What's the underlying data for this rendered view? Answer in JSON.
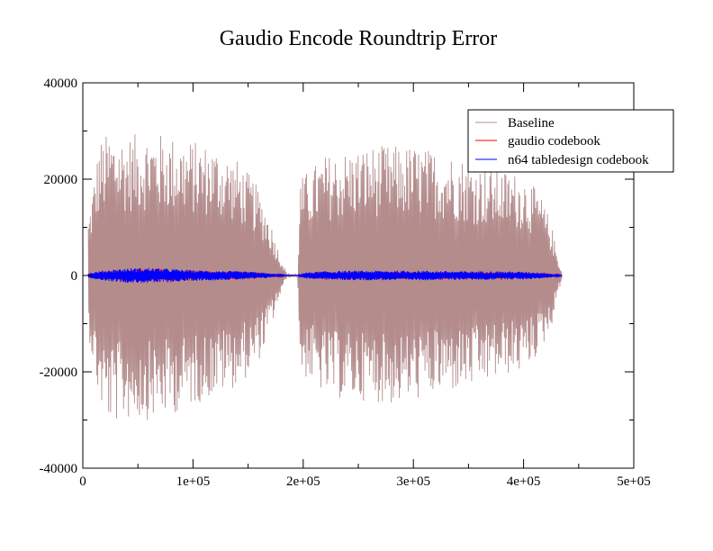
{
  "chart_data": {
    "type": "line",
    "title": "Gaudio Encode Roundtrip Error",
    "xlabel": "",
    "ylabel": "",
    "xlim": [
      0,
      500000
    ],
    "ylim": [
      -40000,
      40000
    ],
    "x_major_ticks": [
      0,
      100000,
      200000,
      300000,
      400000,
      500000
    ],
    "x_tick_labels": [
      "0",
      "1e+05",
      "2e+05",
      "3e+05",
      "4e+05",
      "5e+05"
    ],
    "y_major_ticks": [
      -40000,
      -20000,
      0,
      20000,
      40000
    ],
    "y_tick_labels": [
      "-40000",
      "-20000",
      "0",
      "20000",
      "40000"
    ],
    "grid": false,
    "legend_position": "top-right",
    "series": [
      {
        "name": "Baseline",
        "color": "#b48c8c",
        "x": [
          5000,
          15000,
          25000,
          40000,
          60000,
          80000,
          100000,
          120000,
          140000,
          155000,
          165000,
          172000,
          178000,
          185000,
          195000,
          197000,
          205000,
          220000,
          240000,
          260000,
          280000,
          300000,
          320000,
          340000,
          360000,
          380000,
          400000,
          415000,
          425000,
          430000,
          435000
        ],
        "upper": [
          12000,
          28000,
          30000,
          29000,
          30000,
          29000,
          28000,
          27000,
          24000,
          20000,
          15000,
          10000,
          5000,
          500,
          200,
          20000,
          22000,
          25000,
          26000,
          27000,
          27000,
          27000,
          26000,
          25000,
          23000,
          22000,
          21000,
          17000,
          11000,
          5000,
          500
        ],
        "lower": [
          -12000,
          -27000,
          -31000,
          -30000,
          -30000,
          -29000,
          -27000,
          -25000,
          -23000,
          -20000,
          -15000,
          -10000,
          -5000,
          -500,
          -200,
          -20000,
          -22000,
          -25000,
          -26000,
          -26000,
          -27000,
          -26000,
          -25000,
          -24000,
          -23000,
          -21000,
          -20000,
          -16000,
          -11000,
          -5000,
          -500
        ]
      },
      {
        "name": "gaudio codebook",
        "color": "#ff0000",
        "x": [
          5000,
          20000,
          40000,
          60000,
          80000,
          100000,
          120000,
          140000,
          160000,
          175000,
          185000,
          195000,
          200000,
          220000,
          250000,
          280000,
          310000,
          340000,
          370000,
          400000,
          420000,
          435000
        ],
        "upper": [
          400,
          900,
          1200,
          1300,
          1200,
          1000,
          900,
          800,
          600,
          300,
          50,
          30,
          500,
          700,
          800,
          800,
          800,
          700,
          700,
          600,
          500,
          50
        ],
        "lower": [
          -400,
          -900,
          -1200,
          -1300,
          -1200,
          -1000,
          -900,
          -800,
          -600,
          -300,
          -50,
          -30,
          -500,
          -700,
          -800,
          -800,
          -800,
          -700,
          -700,
          -600,
          -500,
          -50
        ]
      },
      {
        "name": "n64 tabledesign codebook",
        "color": "#0000ff",
        "x": [
          5000,
          20000,
          40000,
          60000,
          80000,
          100000,
          120000,
          140000,
          160000,
          175000,
          185000,
          195000,
          200000,
          220000,
          250000,
          280000,
          310000,
          340000,
          370000,
          400000,
          420000,
          435000
        ],
        "upper": [
          500,
          1100,
          1500,
          1600,
          1400,
          1100,
          1000,
          900,
          700,
          300,
          50,
          30,
          600,
          900,
          1000,
          1000,
          1000,
          900,
          900,
          800,
          600,
          50
        ],
        "lower": [
          -500,
          -1100,
          -1500,
          -1600,
          -1400,
          -1100,
          -1000,
          -900,
          -700,
          -300,
          -50,
          -30,
          -600,
          -900,
          -1000,
          -1000,
          -1000,
          -900,
          -900,
          -800,
          -600,
          -50
        ]
      }
    ]
  }
}
